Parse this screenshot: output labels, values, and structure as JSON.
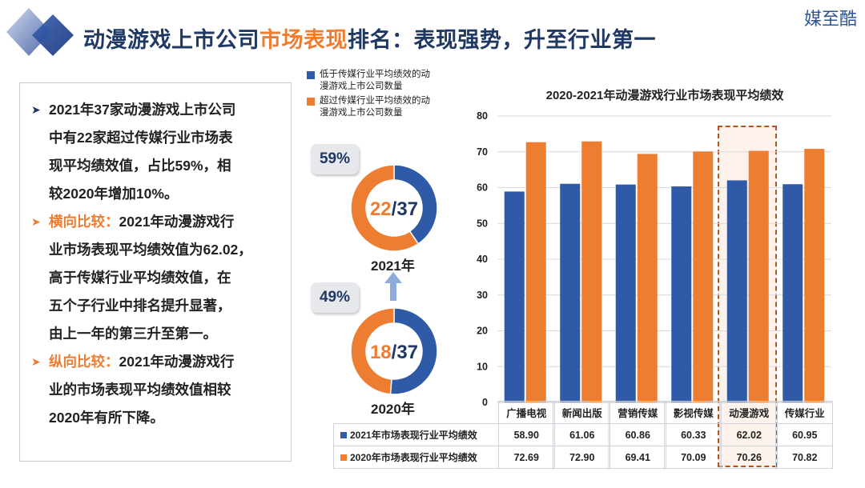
{
  "header": {
    "title_part1": "动漫游戏上市公司",
    "title_part2": "市场表现",
    "title_part3": "排名：表现强势，升至行业第一",
    "brand": "媒至酷"
  },
  "summary": {
    "bullet1": [
      "2021年37家动漫游戏上市公司",
      "中有22家超过传媒行业市场表",
      "现平均绩效值，占比59%，相",
      "较2020年增加10%。"
    ],
    "bullet2_label": "横向比较：",
    "bullet2": [
      "2021年动漫游戏行",
      "业市场表现平均绩效值为62.02，",
      "高于传媒行业平均绩效值，在",
      "五个子行业中排名提升显著，",
      "由上一年的第三升至第一。"
    ],
    "bullet3_label": "纵向比较：",
    "bullet3": [
      "2021年动漫游戏行",
      "业的市场表现平均绩效值相较",
      "2020年有所下降。"
    ]
  },
  "donut_legend": {
    "below": [
      "低于传媒行业平均绩效的动",
      "漫游戏上市公司数量"
    ],
    "above": [
      "超过传媒行业平均绩效的动",
      "漫游戏上市公司数量"
    ]
  },
  "donuts": [
    {
      "year": "2021年",
      "pct": "59%",
      "above": 22,
      "total": 37,
      "above_text": "22",
      "total_text": "/37"
    },
    {
      "year": "2020年",
      "pct": "49%",
      "above": 18,
      "total": 37,
      "above_text": "18",
      "total_text": "/37"
    }
  ],
  "colors": {
    "blue": "#2f5aa8",
    "orange": "#ed7d31",
    "navy": "#1f3864"
  },
  "chart_data": {
    "type": "bar",
    "title": "2020-2021年动漫游戏行业市场表现平均绩效",
    "categories": [
      "广播电视",
      "新闻出版",
      "营销传媒",
      "影视传媒",
      "动漫游戏",
      "传媒行业"
    ],
    "series": [
      {
        "name": "2021年市场表现行业平均绩效",
        "values": [
          58.9,
          61.06,
          60.86,
          60.33,
          62.02,
          60.95
        ],
        "values_text": [
          "58.90",
          "61.06",
          "60.86",
          "60.33",
          "62.02",
          "60.95"
        ]
      },
      {
        "name": "2020年市场表现行业平均绩效",
        "values": [
          72.69,
          72.9,
          69.41,
          70.09,
          70.26,
          70.82
        ],
        "values_text": [
          "72.69",
          "72.90",
          "69.41",
          "70.09",
          "70.26",
          "70.82"
        ]
      }
    ],
    "ylim": [
      0,
      80
    ],
    "yticks": [
      "0",
      "10",
      "20",
      "30",
      "40",
      "50",
      "60",
      "70",
      "80"
    ],
    "highlight_category": "动漫游戏"
  }
}
